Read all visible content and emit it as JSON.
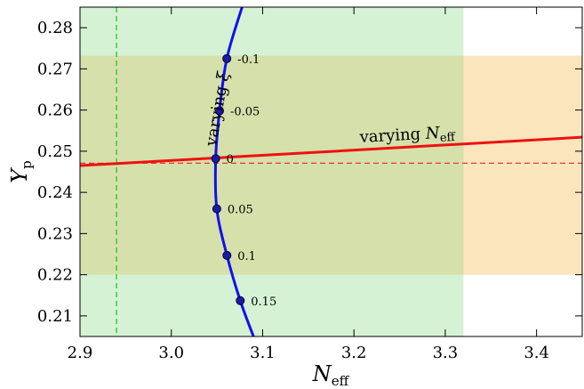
{
  "chart_data": {
    "type": "line",
    "xlabel": "N",
    "xlabel_sub": "eff",
    "ylabel": "Y",
    "ylabel_sub": "p",
    "xlim": [
      2.9,
      3.45
    ],
    "ylim": [
      0.205,
      0.285
    ],
    "x_ticks": [
      2.9,
      3.0,
      3.1,
      3.2,
      3.3,
      3.4
    ],
    "x_tick_labels": [
      "2.9",
      "3.0",
      "3.1",
      "3.2",
      "3.3",
      "3.4"
    ],
    "y_ticks": [
      0.21,
      0.22,
      0.23,
      0.24,
      0.25,
      0.26,
      0.27,
      0.28
    ],
    "y_tick_labels": [
      "0.21",
      "0.22",
      "0.23",
      "0.24",
      "0.25",
      "0.26",
      "0.27",
      "0.28"
    ],
    "bands": [
      {
        "orientation": "vertical",
        "from": 2.9,
        "to": 3.32,
        "color": "#d5f2d5"
      },
      {
        "orientation": "horizontal",
        "from": 0.22,
        "to": 0.2732,
        "color": "#fbe5bd"
      },
      {
        "orientation": "overlap",
        "color": "#d5e0ab"
      }
    ],
    "reference_lines": [
      {
        "orientation": "vertical",
        "value": 2.94,
        "color": "#22bb22",
        "style": "dashed"
      },
      {
        "orientation": "horizontal",
        "value": 0.2471,
        "color": "#ee2222",
        "style": "dashed"
      }
    ],
    "series": [
      {
        "annotation_prefix": "varying ",
        "annotation_var": "N",
        "annotation_sub": "eff",
        "color": "#ee1111",
        "points": [
          {
            "x": 2.9,
            "y": 0.2465
          },
          {
            "x": 3.45,
            "y": 0.2534
          }
        ]
      },
      {
        "annotation_prefix": "varying ",
        "annotation_var": "ξ",
        "color": "#1111ee",
        "curve": [
          {
            "x": 3.0775,
            "y": 0.285
          },
          {
            "x": 3.0608,
            "y": 0.2725
          },
          {
            "x": 3.0528,
            "y": 0.2598
          },
          {
            "x": 3.0486,
            "y": 0.2482
          },
          {
            "x": 3.0498,
            "y": 0.236
          },
          {
            "x": 3.0609,
            "y": 0.2247
          },
          {
            "x": 3.0755,
            "y": 0.2137
          },
          {
            "x": 3.09,
            "y": 0.205
          }
        ],
        "markers": [
          {
            "x": 3.0608,
            "y": 0.2725,
            "label": "-0.1"
          },
          {
            "x": 3.0528,
            "y": 0.2598,
            "label": "-0.05"
          },
          {
            "x": 3.0486,
            "y": 0.2482,
            "label": "0"
          },
          {
            "x": 3.0498,
            "y": 0.236,
            "label": "0.05"
          },
          {
            "x": 3.0609,
            "y": 0.2247,
            "label": "0.1"
          },
          {
            "x": 3.0755,
            "y": 0.2137,
            "label": "0.15"
          }
        ]
      }
    ]
  }
}
